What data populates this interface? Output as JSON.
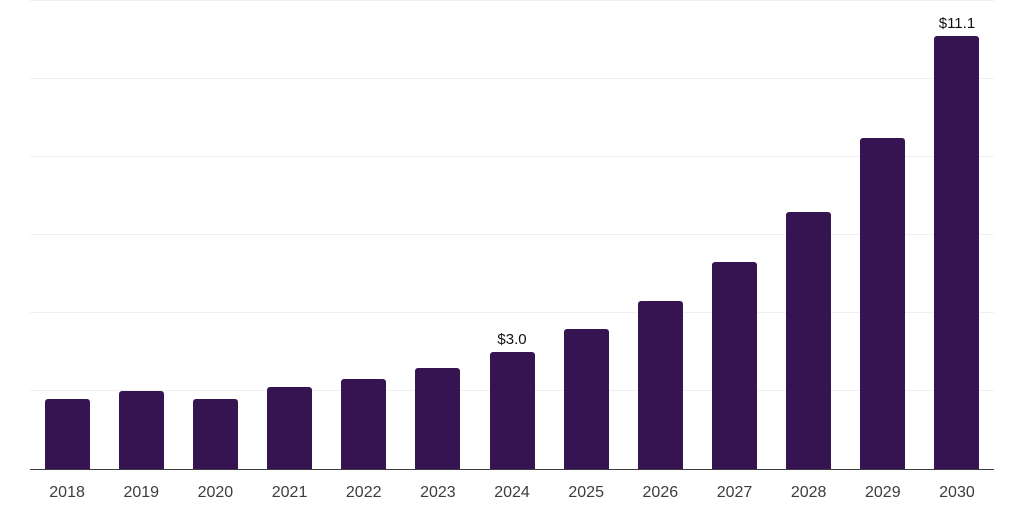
{
  "chart": {
    "background_color": "#ffffff",
    "bar_color": "#361452",
    "axis_line_color": "#3d3d3d",
    "gridline_color": "#f0f0f0",
    "tick_label_color": "#3c3c3c",
    "value_label_color": "#111111"
  },
  "chart_data": {
    "type": "bar",
    "title": "",
    "xlabel": "",
    "ylabel": "",
    "categories": [
      "2018",
      "2019",
      "2020",
      "2021",
      "2022",
      "2023",
      "2024",
      "2025",
      "2026",
      "2027",
      "2028",
      "2029",
      "2030"
    ],
    "values": [
      1.8,
      2.0,
      1.8,
      2.1,
      2.3,
      2.6,
      3.0,
      3.6,
      4.3,
      5.3,
      6.6,
      8.5,
      11.1
    ],
    "data_labels": [
      "",
      "",
      "",
      "",
      "",
      "",
      "$3.0",
      "",
      "",
      "",
      "",
      "",
      "$11.1"
    ],
    "ylim": [
      0,
      12
    ],
    "gridline_step": 2,
    "y_tick_labels_visible": false,
    "grid": "horizontal",
    "legend": "none"
  }
}
